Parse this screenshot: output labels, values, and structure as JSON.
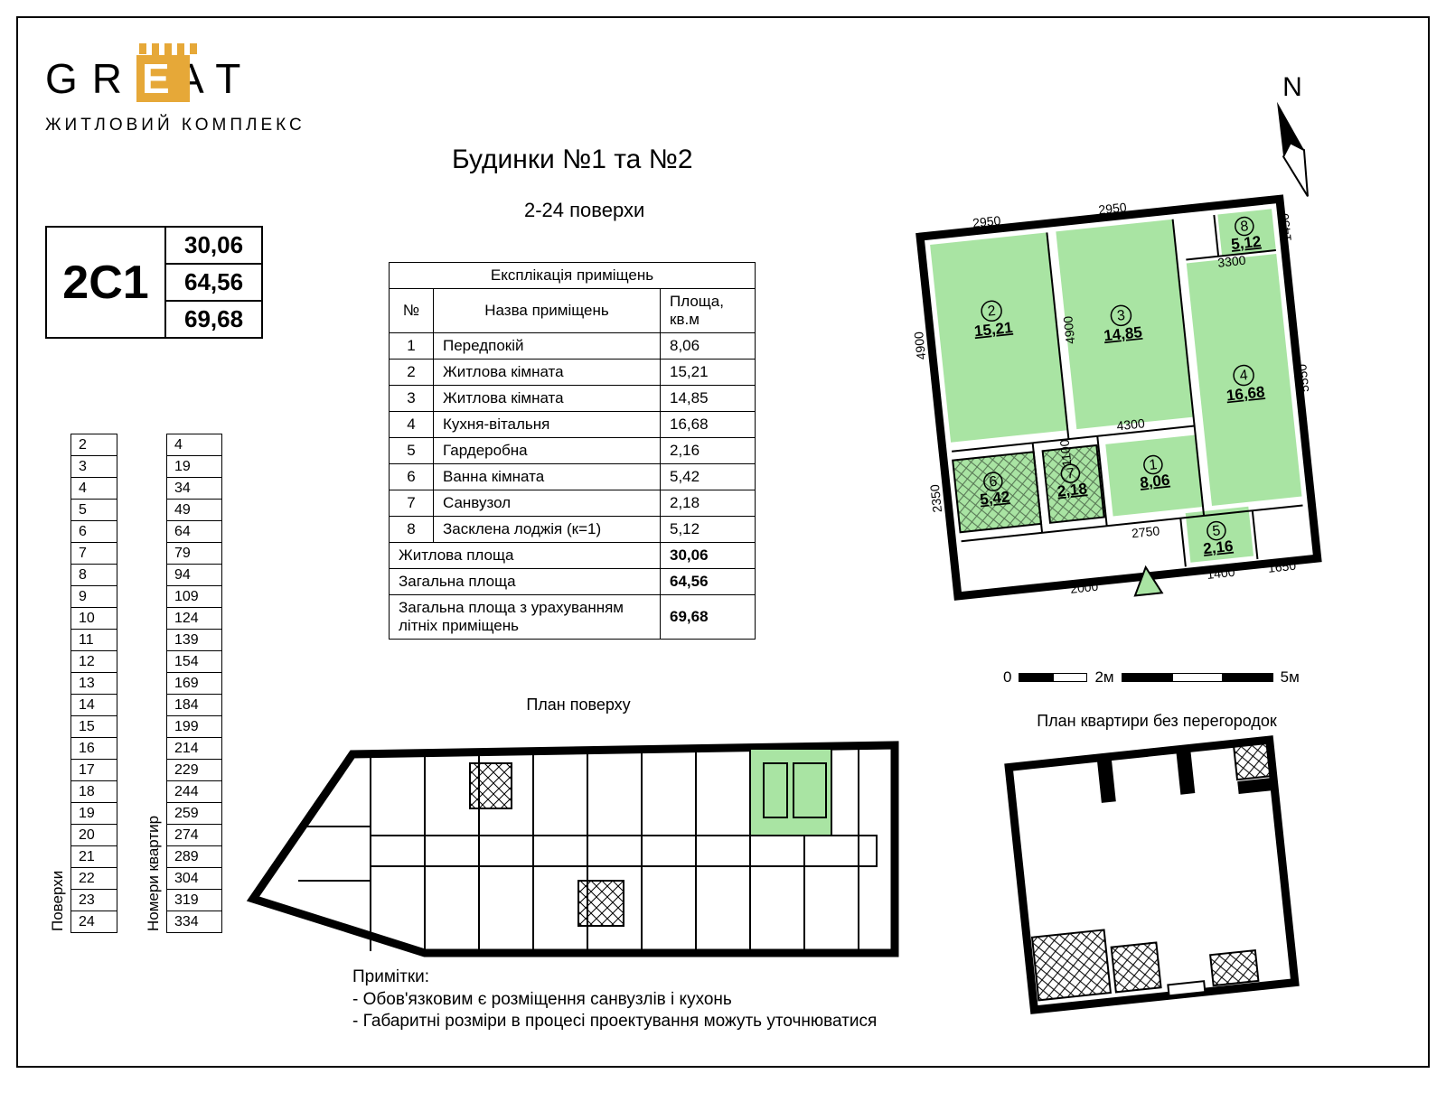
{
  "colors": {
    "accent": "#e6a838",
    "room_fill": "#a9e4a3",
    "bg": "#ffffff",
    "line": "#000000"
  },
  "logo": {
    "letters": [
      "G",
      "R",
      "E",
      "A",
      "T"
    ],
    "subtitle": "ЖИТЛОВИЙ КОМПЛЕКС"
  },
  "unit": {
    "code": "2С1",
    "areas": [
      "30,06",
      "64,56",
      "69,68"
    ]
  },
  "fa": {
    "floors_label": "Поверхи",
    "apts_label": "Номери квартир",
    "floors": [
      "2",
      "3",
      "4",
      "5",
      "6",
      "7",
      "8",
      "9",
      "10",
      "11",
      "12",
      "13",
      "14",
      "15",
      "16",
      "17",
      "18",
      "19",
      "20",
      "21",
      "22",
      "23",
      "24"
    ],
    "apts": [
      "4",
      "19",
      "34",
      "49",
      "64",
      "79",
      "94",
      "109",
      "124",
      "139",
      "154",
      "169",
      "184",
      "199",
      "214",
      "229",
      "244",
      "259",
      "274",
      "289",
      "304",
      "319",
      "334"
    ]
  },
  "titles": {
    "main": "Будинки №1 та №2",
    "sub": "2-24 поверхи",
    "expl_head": "Експлікація приміщень",
    "col_num": "№",
    "col_name": "Назва приміщень",
    "col_area": "Площа, кв.м",
    "floor_plan": "План поверху",
    "apt_plan": "План квартири без перегородок"
  },
  "rooms": [
    {
      "n": "1",
      "name": "Передпокій",
      "area": "8,06"
    },
    {
      "n": "2",
      "name": "Житлова кімната",
      "area": "15,21"
    },
    {
      "n": "3",
      "name": "Житлова кімната",
      "area": "14,85"
    },
    {
      "n": "4",
      "name": "Кухня-вітальня",
      "area": "16,68"
    },
    {
      "n": "5",
      "name": "Гардеробна",
      "area": "2,16"
    },
    {
      "n": "6",
      "name": "Ванна кімната",
      "area": "5,42"
    },
    {
      "n": "7",
      "name": "Санвузол",
      "area": "2,18"
    },
    {
      "n": "8",
      "name": "Засклена лоджія (к=1)",
      "area": "5,12"
    }
  ],
  "totals": [
    {
      "name": "Житлова площа",
      "area": "30,06",
      "bold": true
    },
    {
      "name": "Загальна площа",
      "area": "64,56",
      "bold": true
    },
    {
      "name": "Загальна площа з урахуванням літніх приміщень",
      "area": "69,68",
      "bold": true
    }
  ],
  "compass": {
    "label": "N"
  },
  "apt_dims": {
    "top_a": "2950",
    "top_b": "2950",
    "top_c": "3300",
    "left_h": "4900",
    "left_h2": "2350",
    "mid_h": "4900",
    "right_h": "5550",
    "mid_w": "4300",
    "bot_a": "2000",
    "bot_b": "2750",
    "bot_c": "1400",
    "bot_d": "1650",
    "r8_w": "1450",
    "r1_h": "1100"
  },
  "scale": {
    "zero": "0",
    "mid": "2м",
    "end": "5м"
  },
  "notes": {
    "heading": "Примітки:",
    "lines": [
      "- Обов'язковим є розміщення санвузлів і кухонь",
      "- Габаритні розміри в процесі проектування можуть уточнюватися"
    ]
  }
}
